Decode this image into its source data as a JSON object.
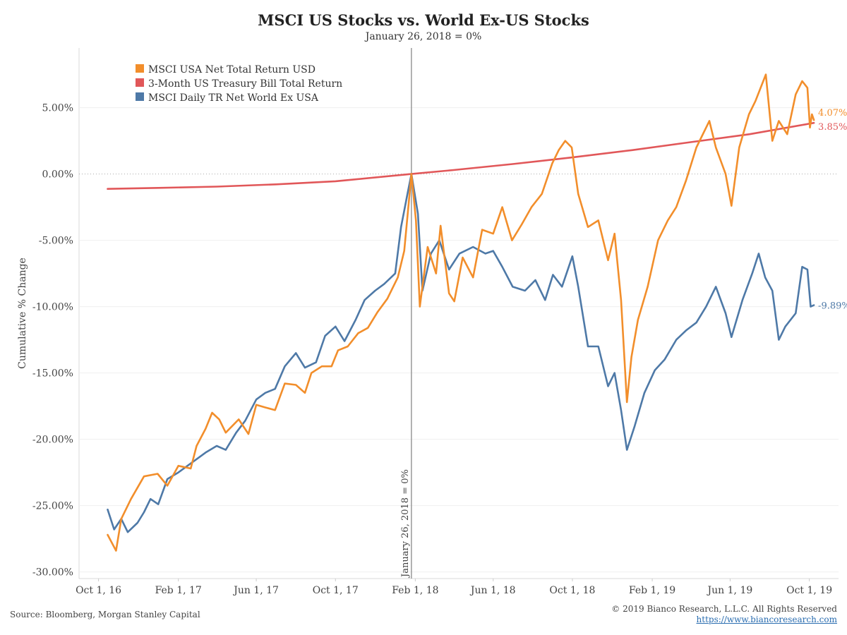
{
  "header": {
    "title": "MSCI US Stocks vs. World Ex-US Stocks",
    "subtitle": "January 26, 2018 = 0%"
  },
  "footer": {
    "source": "Source: Bloomberg, Morgan Stanley Capital",
    "copyright": "© 2019 Bianco Research, L.L.C. All Rights Reserved",
    "url": "https://www.biancoresearch.com"
  },
  "chart_data": {
    "type": "line",
    "title": "MSCI US Stocks vs. World Ex-US Stocks",
    "subtitle": "January 26, 2018 = 0%",
    "ylabel": "Cumulative % Change",
    "xlabel": "",
    "ylim": [
      -30.5,
      9.5
    ],
    "xlim": [
      "2016-09-01",
      "2019-11-15"
    ],
    "grid": true,
    "legend_position": "top-left",
    "y_ticks": [
      5,
      0,
      -5,
      -10,
      -15,
      -20,
      -25,
      -30
    ],
    "y_tick_labels": [
      "5.00%",
      "0.00%",
      "-5.00%",
      "-10.00%",
      "-15.00%",
      "-20.00%",
      "-25.00%",
      "-30.00%"
    ],
    "x_ticks": [
      "2016-10-01",
      "2017-02-01",
      "2017-06-01",
      "2017-10-01",
      "2018-02-01",
      "2018-06-01",
      "2018-10-01",
      "2019-02-01",
      "2019-06-01",
      "2019-10-01"
    ],
    "x_tick_labels": [
      "Oct 1, 16",
      "Feb 1, 17",
      "Jun 1, 17",
      "Oct 1, 17",
      "Feb 1, 18",
      "Jun 1, 18",
      "Oct 1, 18",
      "Feb 1, 19",
      "Jun 1, 19",
      "Oct 1, 19"
    ],
    "reference_line": {
      "date": "2018-01-26",
      "label": "January 26, 2018 = 0%"
    },
    "zero_line": 0,
    "series": [
      {
        "name": "MSCI USA Net Total Return USD",
        "color": "#f28e2b",
        "end_label": "4.07%",
        "points": [
          [
            "2016-10-15",
            -27.2
          ],
          [
            "2016-10-28",
            -28.4
          ],
          [
            "2016-11-05",
            -26.0
          ],
          [
            "2016-11-20",
            -24.5
          ],
          [
            "2016-12-10",
            -22.8
          ],
          [
            "2016-12-31",
            -22.6
          ],
          [
            "2017-01-15",
            -23.5
          ],
          [
            "2017-02-01",
            -22.0
          ],
          [
            "2017-02-20",
            -22.2
          ],
          [
            "2017-03-01",
            -20.5
          ],
          [
            "2017-03-15",
            -19.2
          ],
          [
            "2017-03-25",
            -18.0
          ],
          [
            "2017-04-05",
            -18.5
          ],
          [
            "2017-04-15",
            -19.5
          ],
          [
            "2017-04-25",
            -19.0
          ],
          [
            "2017-05-05",
            -18.5
          ],
          [
            "2017-05-20",
            -19.6
          ],
          [
            "2017-06-01",
            -17.4
          ],
          [
            "2017-06-15",
            -17.6
          ],
          [
            "2017-06-30",
            -17.8
          ],
          [
            "2017-07-15",
            -15.8
          ],
          [
            "2017-08-01",
            -15.9
          ],
          [
            "2017-08-15",
            -16.5
          ],
          [
            "2017-08-25",
            -15.0
          ],
          [
            "2017-09-10",
            -14.5
          ],
          [
            "2017-09-25",
            -14.5
          ],
          [
            "2017-10-05",
            -13.3
          ],
          [
            "2017-10-20",
            -13.0
          ],
          [
            "2017-11-05",
            -12.0
          ],
          [
            "2017-11-20",
            -11.6
          ],
          [
            "2017-12-05",
            -10.4
          ],
          [
            "2017-12-20",
            -9.4
          ],
          [
            "2018-01-05",
            -7.8
          ],
          [
            "2018-01-15",
            -5.8
          ],
          [
            "2018-01-26",
            0.0
          ],
          [
            "2018-02-02",
            -3.5
          ],
          [
            "2018-02-08",
            -10.0
          ],
          [
            "2018-02-20",
            -5.5
          ],
          [
            "2018-03-05",
            -7.5
          ],
          [
            "2018-03-12",
            -3.9
          ],
          [
            "2018-03-25",
            -9.0
          ],
          [
            "2018-04-02",
            -9.6
          ],
          [
            "2018-04-15",
            -6.3
          ],
          [
            "2018-05-01",
            -7.8
          ],
          [
            "2018-05-15",
            -4.2
          ],
          [
            "2018-06-01",
            -4.5
          ],
          [
            "2018-06-15",
            -2.5
          ],
          [
            "2018-06-30",
            -5.0
          ],
          [
            "2018-07-15",
            -3.8
          ],
          [
            "2018-07-30",
            -2.5
          ],
          [
            "2018-08-15",
            -1.5
          ],
          [
            "2018-08-31",
            0.8
          ],
          [
            "2018-09-10",
            1.8
          ],
          [
            "2018-09-20",
            2.5
          ],
          [
            "2018-09-30",
            2.0
          ],
          [
            "2018-10-10",
            -1.5
          ],
          [
            "2018-10-25",
            -4.0
          ],
          [
            "2018-11-10",
            -3.5
          ],
          [
            "2018-11-25",
            -6.5
          ],
          [
            "2018-12-05",
            -4.5
          ],
          [
            "2018-12-15",
            -9.5
          ],
          [
            "2018-12-24",
            -17.2
          ],
          [
            "2018-12-31",
            -13.8
          ],
          [
            "2019-01-10",
            -11.0
          ],
          [
            "2019-01-25",
            -8.5
          ],
          [
            "2019-02-10",
            -5.0
          ],
          [
            "2019-02-25",
            -3.5
          ],
          [
            "2019-03-10",
            -2.5
          ],
          [
            "2019-03-25",
            -0.5
          ],
          [
            "2019-04-10",
            2.0
          ],
          [
            "2019-04-30",
            4.0
          ],
          [
            "2019-05-10",
            2.0
          ],
          [
            "2019-05-25",
            0.0
          ],
          [
            "2019-06-03",
            -2.4
          ],
          [
            "2019-06-15",
            2.0
          ],
          [
            "2019-06-30",
            4.5
          ],
          [
            "2019-07-10",
            5.5
          ],
          [
            "2019-07-26",
            7.5
          ],
          [
            "2019-08-05",
            2.5
          ],
          [
            "2019-08-15",
            4.0
          ],
          [
            "2019-08-28",
            3.0
          ],
          [
            "2019-09-10",
            6.0
          ],
          [
            "2019-09-20",
            7.0
          ],
          [
            "2019-09-28",
            6.5
          ],
          [
            "2019-10-02",
            3.5
          ],
          [
            "2019-10-05",
            4.5
          ],
          [
            "2019-10-08",
            4.07
          ]
        ]
      },
      {
        "name": "3-Month US Treasury Bill Total Return",
        "color": "#e15759",
        "end_label": "3.85%",
        "points": [
          [
            "2016-10-15",
            -1.12
          ],
          [
            "2017-01-01",
            -1.05
          ],
          [
            "2017-04-01",
            -0.95
          ],
          [
            "2017-07-01",
            -0.78
          ],
          [
            "2017-10-01",
            -0.55
          ],
          [
            "2018-01-26",
            0.0
          ],
          [
            "2018-04-01",
            0.3
          ],
          [
            "2018-07-01",
            0.75
          ],
          [
            "2018-10-01",
            1.25
          ],
          [
            "2019-01-01",
            1.8
          ],
          [
            "2019-04-01",
            2.4
          ],
          [
            "2019-07-01",
            3.0
          ],
          [
            "2019-10-08",
            3.85
          ]
        ]
      },
      {
        "name": "MSCI Daily TR Net World Ex USA",
        "color": "#4e79a7",
        "end_label": "-9.89%",
        "points": [
          [
            "2016-10-15",
            -25.3
          ],
          [
            "2016-10-25",
            -26.8
          ],
          [
            "2016-11-05",
            -26.0
          ],
          [
            "2016-11-15",
            -27.0
          ],
          [
            "2016-11-30",
            -26.3
          ],
          [
            "2016-12-10",
            -25.5
          ],
          [
            "2016-12-20",
            -24.5
          ],
          [
            "2017-01-01",
            -24.9
          ],
          [
            "2017-01-15",
            -23.0
          ],
          [
            "2017-02-01",
            -22.5
          ],
          [
            "2017-02-15",
            -22.0
          ],
          [
            "2017-03-01",
            -21.5
          ],
          [
            "2017-03-15",
            -21.0
          ],
          [
            "2017-04-01",
            -20.5
          ],
          [
            "2017-04-15",
            -20.8
          ],
          [
            "2017-05-01",
            -19.5
          ],
          [
            "2017-05-15",
            -18.6
          ],
          [
            "2017-06-01",
            -17.0
          ],
          [
            "2017-06-15",
            -16.5
          ],
          [
            "2017-06-30",
            -16.2
          ],
          [
            "2017-07-15",
            -14.5
          ],
          [
            "2017-08-01",
            -13.5
          ],
          [
            "2017-08-15",
            -14.6
          ],
          [
            "2017-09-01",
            -14.2
          ],
          [
            "2017-09-15",
            -12.2
          ],
          [
            "2017-10-01",
            -11.5
          ],
          [
            "2017-10-15",
            -12.6
          ],
          [
            "2017-11-01",
            -11.0
          ],
          [
            "2017-11-15",
            -9.5
          ],
          [
            "2017-12-01",
            -8.8
          ],
          [
            "2017-12-15",
            -8.3
          ],
          [
            "2018-01-01",
            -7.5
          ],
          [
            "2018-01-10",
            -4.0
          ],
          [
            "2018-01-20",
            -1.5
          ],
          [
            "2018-01-26",
            0.0
          ],
          [
            "2018-02-05",
            -3.0
          ],
          [
            "2018-02-12",
            -8.8
          ],
          [
            "2018-02-25",
            -6.0
          ],
          [
            "2018-03-10",
            -5.0
          ],
          [
            "2018-03-25",
            -7.2
          ],
          [
            "2018-04-10",
            -6.0
          ],
          [
            "2018-05-01",
            -5.5
          ],
          [
            "2018-05-20",
            -6.0
          ],
          [
            "2018-06-01",
            -5.8
          ],
          [
            "2018-06-15",
            -7.0
          ],
          [
            "2018-07-01",
            -8.5
          ],
          [
            "2018-07-20",
            -8.8
          ],
          [
            "2018-08-05",
            -8.0
          ],
          [
            "2018-08-20",
            -9.5
          ],
          [
            "2018-09-01",
            -7.6
          ],
          [
            "2018-09-15",
            -8.5
          ],
          [
            "2018-10-01",
            -6.2
          ],
          [
            "2018-10-10",
            -8.5
          ],
          [
            "2018-10-25",
            -13.0
          ],
          [
            "2018-11-10",
            -13.0
          ],
          [
            "2018-11-25",
            -16.0
          ],
          [
            "2018-12-05",
            -15.0
          ],
          [
            "2018-12-15",
            -17.8
          ],
          [
            "2018-12-24",
            -20.8
          ],
          [
            "2019-01-05",
            -19.0
          ],
          [
            "2019-01-20",
            -16.5
          ],
          [
            "2019-02-05",
            -14.8
          ],
          [
            "2019-02-20",
            -14.0
          ],
          [
            "2019-03-10",
            -12.5
          ],
          [
            "2019-03-25",
            -11.8
          ],
          [
            "2019-04-10",
            -11.2
          ],
          [
            "2019-04-25",
            -10.0
          ],
          [
            "2019-05-10",
            -8.5
          ],
          [
            "2019-05-25",
            -10.5
          ],
          [
            "2019-06-03",
            -12.3
          ],
          [
            "2019-06-20",
            -9.5
          ],
          [
            "2019-07-05",
            -7.5
          ],
          [
            "2019-07-15",
            -6.0
          ],
          [
            "2019-07-25",
            -7.8
          ],
          [
            "2019-08-05",
            -8.8
          ],
          [
            "2019-08-15",
            -12.5
          ],
          [
            "2019-08-25",
            -11.5
          ],
          [
            "2019-09-10",
            -10.5
          ],
          [
            "2019-09-20",
            -7.0
          ],
          [
            "2019-09-28",
            -7.2
          ],
          [
            "2019-10-03",
            -10.0
          ],
          [
            "2019-10-08",
            -9.89
          ]
        ]
      }
    ]
  }
}
